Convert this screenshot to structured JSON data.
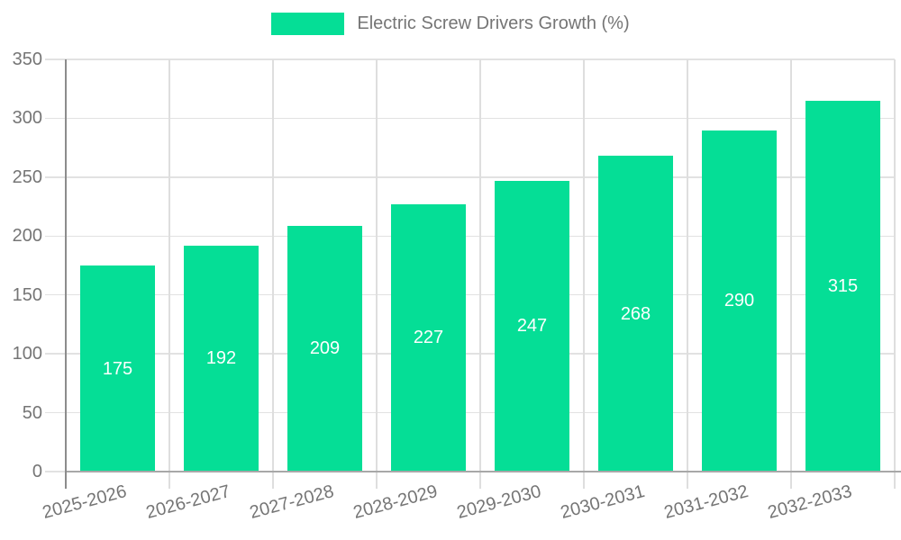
{
  "legend": {
    "label": "Electric Screw Drivers Growth (%)"
  },
  "colors": {
    "bar": "#05DE96",
    "axis_label": "#757575",
    "grid": "#e2e2e2",
    "y_axis_line": "#8c8c8c",
    "x_axis_line": "#a8a8a8",
    "value_label": "#ffffff",
    "background": "#ffffff"
  },
  "chart_data": {
    "type": "bar",
    "title": "Electric Screw Drivers Growth (%)",
    "categories": [
      "2025-2026",
      "2026-2027",
      "2027-2028",
      "2028-2029",
      "2029-2030",
      "2030-2031",
      "2031-2032",
      "2032-2033"
    ],
    "values": [
      175,
      192,
      209,
      227,
      247,
      268,
      290,
      315
    ],
    "xlabel": "",
    "ylabel": "",
    "ylim": [
      0,
      350
    ],
    "ytick_interval": 50,
    "ytick_labels": [
      "0",
      "50",
      "100",
      "150",
      "200",
      "250",
      "300",
      "350"
    ],
    "grid": true,
    "legend_position": "top-center",
    "value_label_position": "inside-center"
  }
}
